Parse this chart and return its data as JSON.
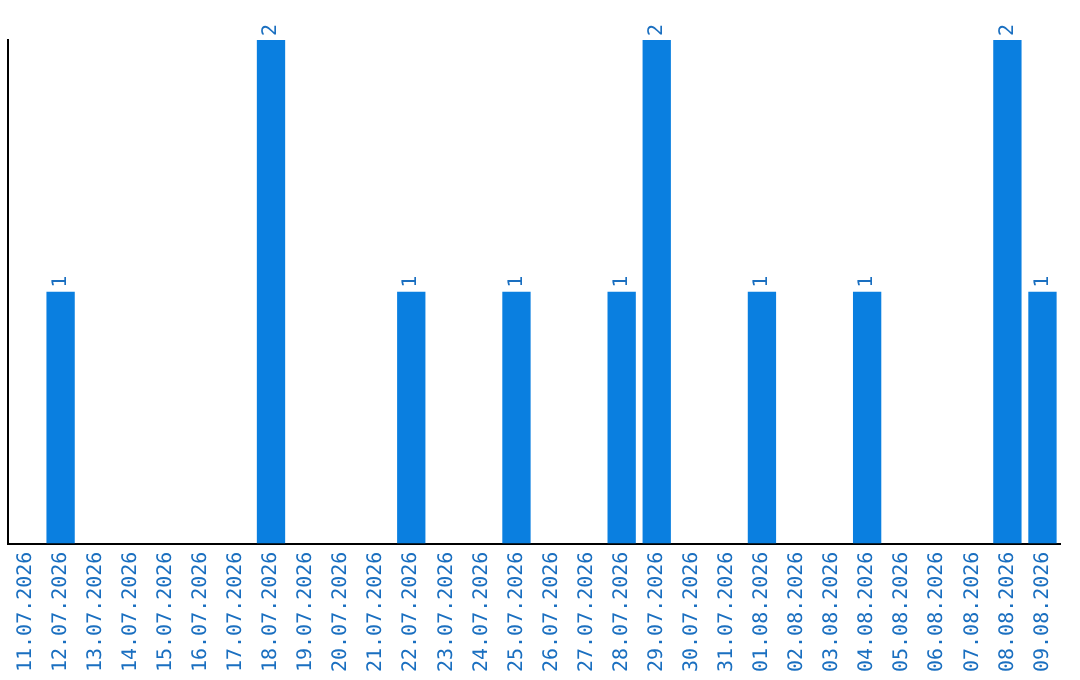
{
  "chart_data": {
    "type": "bar",
    "categories": [
      "11.07.2026",
      "12.07.2026",
      "13.07.2026",
      "14.07.2026",
      "15.07.2026",
      "16.07.2026",
      "17.07.2026",
      "18.07.2026",
      "19.07.2026",
      "20.07.2026",
      "21.07.2026",
      "22.07.2026",
      "23.07.2026",
      "24.07.2026",
      "25.07.2026",
      "26.07.2026",
      "27.07.2026",
      "28.07.2026",
      "29.07.2026",
      "30.07.2026",
      "31.07.2026",
      "01.08.2026",
      "02.08.2026",
      "03.08.2026",
      "04.08.2026",
      "05.08.2026",
      "06.08.2026",
      "07.08.2026",
      "08.08.2026",
      "09.08.2026"
    ],
    "values": [
      0,
      1,
      0,
      0,
      0,
      0,
      0,
      2,
      0,
      0,
      0,
      1,
      0,
      0,
      1,
      0,
      0,
      1,
      2,
      0,
      0,
      1,
      0,
      0,
      1,
      0,
      0,
      0,
      2,
      1
    ],
    "value_labels": [
      null,
      "1",
      null,
      null,
      null,
      null,
      null,
      "2",
      null,
      null,
      null,
      "1",
      null,
      null,
      "1",
      null,
      null,
      "1",
      "2",
      null,
      null,
      "1",
      null,
      null,
      "1",
      null,
      null,
      null,
      "2",
      "1"
    ],
    "color": "#0a7fe0",
    "grid": false,
    "legend": false,
    "tick_labels": "x"
  }
}
